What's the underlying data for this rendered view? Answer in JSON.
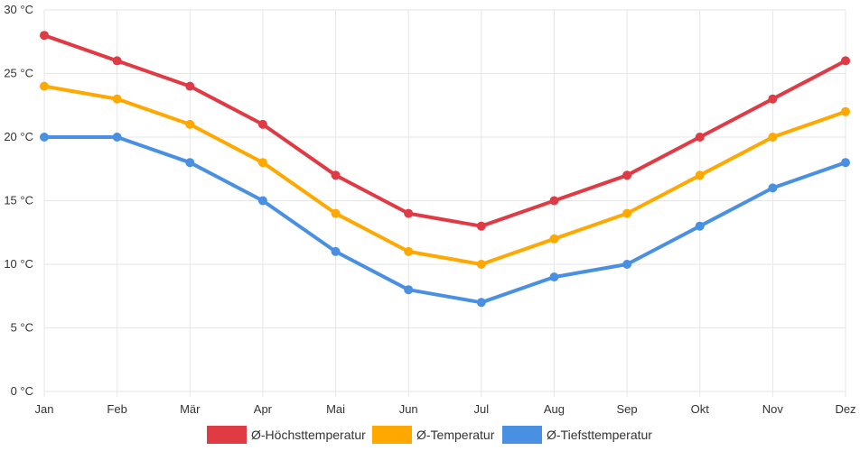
{
  "chart_data": {
    "type": "line",
    "title": "",
    "xlabel": "",
    "ylabel": "",
    "categories": [
      "Jan",
      "Feb",
      "Mär",
      "Apr",
      "Mai",
      "Jun",
      "Jul",
      "Aug",
      "Sep",
      "Okt",
      "Nov",
      "Dez"
    ],
    "y_ticks": [
      "0 °C",
      "5 °C",
      "10 °C",
      "15 °C",
      "20 °C",
      "25 °C",
      "30 °C"
    ],
    "ylim": [
      0,
      30
    ],
    "grid": true,
    "legend_position": "bottom",
    "series": [
      {
        "name": "Ø-Höchsttemperatur",
        "color": "#e03a45",
        "values": [
          28,
          26,
          24,
          21,
          17,
          14,
          13,
          15,
          17,
          20,
          23,
          26
        ]
      },
      {
        "name": "Ø-Temperatur",
        "color": "#ffa800",
        "values": [
          24,
          23,
          21,
          18,
          14,
          11,
          10,
          12,
          14,
          17,
          20,
          22
        ]
      },
      {
        "name": "Ø-Tiefsttemperatur",
        "color": "#4a90e2",
        "values": [
          20,
          20,
          18,
          15,
          11,
          8,
          7,
          9,
          10,
          13,
          16,
          18
        ]
      }
    ]
  }
}
